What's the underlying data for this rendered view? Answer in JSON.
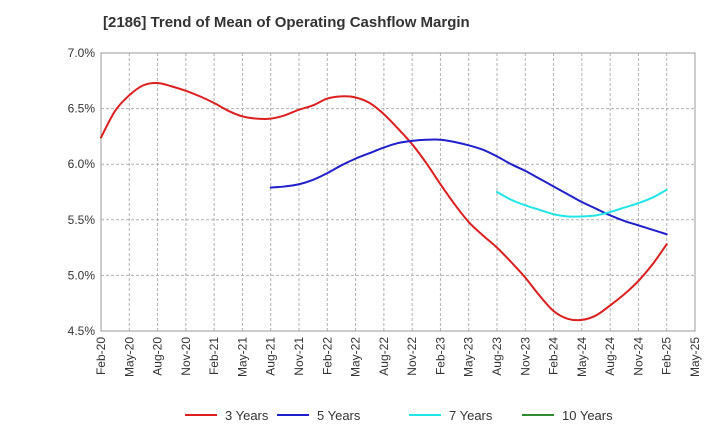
{
  "chart_data": {
    "type": "line",
    "title": "[2186]  Trend of Mean of Operating Cashflow Margin",
    "xlabel": "",
    "ylabel": "",
    "ylim": [
      4.5,
      7.0
    ],
    "y_ticks": [
      7.0,
      6.5,
      6.0,
      5.5,
      5.0,
      4.5
    ],
    "y_tick_labels": [
      "7.0%",
      "6.5%",
      "6.0%",
      "5.5%",
      "5.0%",
      "4.5%"
    ],
    "x_tick_labels": [
      "Feb-20",
      "May-20",
      "Aug-20",
      "Nov-20",
      "Feb-21",
      "May-21",
      "Aug-21",
      "Nov-21",
      "Feb-22",
      "May-22",
      "Aug-22",
      "Nov-22",
      "Feb-23",
      "May-23",
      "Aug-23",
      "Nov-23",
      "Feb-24",
      "May-24",
      "Aug-24",
      "Nov-24",
      "Feb-25",
      "May-25"
    ],
    "grid": true,
    "legend_position": "bottom",
    "series": [
      {
        "name": "3 Years",
        "color": "#dd1f1f",
        "x_index": [
          0,
          0.5,
          1,
          1.5,
          2,
          2.5,
          3,
          3.5,
          4,
          4.5,
          5,
          5.5,
          6,
          6.5,
          7,
          7.5,
          8,
          8.5,
          9,
          9.5,
          10,
          10.5,
          11,
          11.5,
          12,
          12.5,
          13,
          13.5,
          14,
          14.5,
          15,
          15.5,
          16,
          16.5,
          17,
          17.5,
          18,
          18.5,
          19,
          19.5,
          20
        ],
        "values": [
          6.24,
          6.48,
          6.62,
          6.71,
          6.73,
          6.7,
          6.66,
          6.61,
          6.55,
          6.48,
          6.43,
          6.41,
          6.41,
          6.44,
          6.49,
          6.53,
          6.59,
          6.61,
          6.6,
          6.55,
          6.45,
          6.32,
          6.18,
          6.01,
          5.82,
          5.64,
          5.48,
          5.36,
          5.25,
          5.12,
          4.98,
          4.82,
          4.68,
          4.61,
          4.6,
          4.64,
          4.73,
          4.83,
          4.95,
          5.1,
          5.28
        ]
      },
      {
        "name": "5 Years",
        "color": "#1f1fcc",
        "x_index": [
          6,
          6.5,
          7,
          7.5,
          8,
          8.5,
          9,
          9.5,
          10,
          10.5,
          11,
          11.5,
          12,
          12.5,
          13,
          13.5,
          14,
          14.5,
          15,
          15.5,
          16,
          16.5,
          17,
          17.5,
          18,
          18.5,
          19,
          19.5,
          20
        ],
        "values": [
          5.79,
          5.8,
          5.82,
          5.86,
          5.92,
          5.99,
          6.05,
          6.1,
          6.15,
          6.19,
          6.21,
          6.22,
          6.22,
          6.2,
          6.17,
          6.13,
          6.07,
          6.0,
          5.94,
          5.87,
          5.8,
          5.73,
          5.66,
          5.6,
          5.54,
          5.49,
          5.45,
          5.41,
          5.37
        ]
      },
      {
        "name": "7 Years",
        "color": "#22e5e5",
        "x_index": [
          14,
          14.5,
          15,
          15.5,
          16,
          16.5,
          17,
          17.5,
          18,
          18.5,
          19,
          19.5,
          20
        ],
        "values": [
          5.75,
          5.68,
          5.63,
          5.59,
          5.55,
          5.53,
          5.53,
          5.54,
          5.57,
          5.61,
          5.65,
          5.7,
          5.77
        ]
      },
      {
        "name": "10 Years",
        "color": "#2e8b2e",
        "x_index": [],
        "values": []
      }
    ]
  }
}
